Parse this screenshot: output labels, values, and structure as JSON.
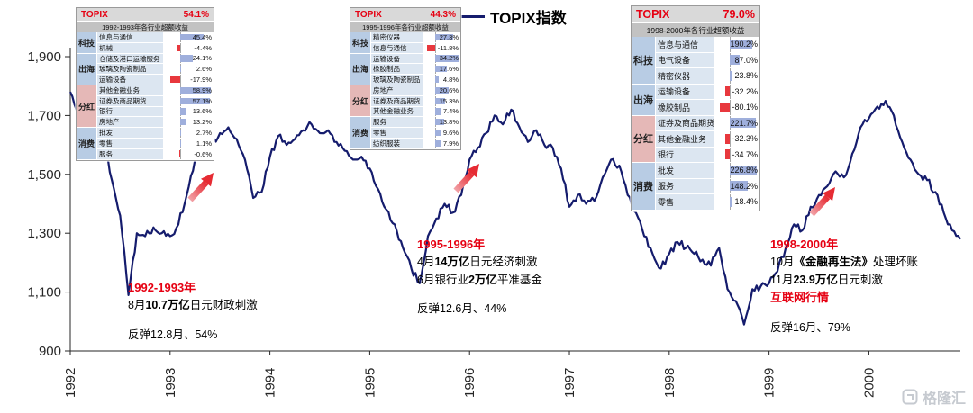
{
  "legend": {
    "label": "TOPIX指数"
  },
  "watermark": {
    "text": "格隆汇"
  },
  "colors": {
    "line": "#151c6d",
    "positive_bar": "#9fafdc",
    "negative_bar": "#e8383d",
    "accent_red": "#e60012"
  },
  "chart_data": {
    "type": "line",
    "series_name": "TOPIX指数",
    "x_start_year": 1992,
    "points_per_year": 12,
    "x_ticks_years": [
      1992,
      1993,
      1994,
      1995,
      1996,
      1997,
      1998,
      1999,
      2000
    ],
    "y_ticks": [
      900,
      1100,
      1300,
      1500,
      1700,
      1900
    ],
    "ylim": [
      900,
      1900
    ],
    "grid": false,
    "values": [
      1780,
      1700,
      1610,
      1560,
      1620,
      1480,
      1360,
      1090,
      1300,
      1290,
      1320,
      1300,
      1290,
      1330,
      1430,
      1550,
      1590,
      1600,
      1640,
      1660,
      1620,
      1550,
      1420,
      1440,
      1560,
      1630,
      1600,
      1620,
      1650,
      1670,
      1640,
      1650,
      1610,
      1580,
      1550,
      1560,
      1520,
      1450,
      1380,
      1330,
      1250,
      1180,
      1130,
      1290,
      1350,
      1400,
      1370,
      1430,
      1550,
      1590,
      1640,
      1700,
      1670,
      1720,
      1660,
      1610,
      1650,
      1600,
      1590,
      1520,
      1390,
      1430,
      1400,
      1410,
      1490,
      1550,
      1530,
      1430,
      1370,
      1290,
      1230,
      1180,
      1230,
      1270,
      1250,
      1230,
      1210,
      1190,
      1250,
      1110,
      1070,
      990,
      1110,
      1120,
      1130,
      1170,
      1250,
      1330,
      1310,
      1390,
      1430,
      1460,
      1510,
      1490,
      1570,
      1660,
      1690,
      1730,
      1750,
      1700,
      1610,
      1550,
      1500,
      1480,
      1440,
      1370,
      1310,
      1280
    ]
  },
  "tables": [
    {
      "index_label": "TOPIX",
      "index_value": "54.1%",
      "subtitle": "1992-1993年各行业超额收益",
      "groups": [
        {
          "name": "科技",
          "type": "blue",
          "rows": [
            {
              "label": "信息与通信",
              "value": 45.4
            },
            {
              "label": "机械",
              "value": -4.4
            }
          ]
        },
        {
          "name": "出海",
          "type": "blue",
          "rows": [
            {
              "label": "仓储及港口运输服务",
              "value": 24.1
            },
            {
              "label": "玻璃及陶瓷制品",
              "value": 2.6
            },
            {
              "label": "运输设备",
              "value": -17.9
            }
          ]
        },
        {
          "name": "分红",
          "type": "pink",
          "rows": [
            {
              "label": "其他金融业务",
              "value": 58.9
            },
            {
              "label": "证券及商品期货",
              "value": 57.1
            },
            {
              "label": "银行",
              "value": 13.6
            },
            {
              "label": "房地产",
              "value": 13.2
            }
          ]
        },
        {
          "name": "消费",
          "type": "blue",
          "rows": [
            {
              "label": "批发",
              "value": 2.7
            },
            {
              "label": "零售",
              "value": 1.1
            },
            {
              "label": "服务",
              "value": -0.6
            }
          ]
        }
      ]
    },
    {
      "index_label": "TOPIX",
      "index_value": "44.3%",
      "subtitle": "1995-1996年各行业超额收益",
      "groups": [
        {
          "name": "科技",
          "type": "blue",
          "rows": [
            {
              "label": "精密仪器",
              "value": 27.3
            },
            {
              "label": "信息与通信",
              "value": -11.8
            }
          ]
        },
        {
          "name": "出海",
          "type": "blue",
          "rows": [
            {
              "label": "运输设备",
              "value": 34.2
            },
            {
              "label": "橡胶制品",
              "value": 17.6
            },
            {
              "label": "玻璃及陶瓷制品",
              "value": 4.8
            }
          ]
        },
        {
          "name": "分红",
          "type": "pink",
          "rows": [
            {
              "label": "房地产",
              "value": 20.6
            },
            {
              "label": "证券及商品期货",
              "value": 15.3
            },
            {
              "label": "其他金融业务",
              "value": 7.4
            }
          ]
        },
        {
          "name": "消费",
          "type": "blue",
          "rows": [
            {
              "label": "服务",
              "value": 13.8
            },
            {
              "label": "零售",
              "value": 9.6
            },
            {
              "label": "纺织服装",
              "value": 7.9
            }
          ]
        }
      ]
    },
    {
      "index_label": "TOPIX",
      "index_value": "79.0%",
      "subtitle": "1998-2000年各行业超额收益",
      "groups": [
        {
          "name": "科技",
          "type": "blue",
          "rows": [
            {
              "label": "信息与通信",
              "value": 190.2
            },
            {
              "label": "电气设备",
              "value": 87.0
            },
            {
              "label": "精密仪器",
              "value": 23.8
            }
          ]
        },
        {
          "name": "出海",
          "type": "blue",
          "rows": [
            {
              "label": "运输设备",
              "value": -32.2
            },
            {
              "label": "橡胶制品",
              "value": -80.1
            }
          ]
        },
        {
          "name": "分红",
          "type": "pink",
          "rows": [
            {
              "label": "证券及商品期货",
              "value": 221.7
            },
            {
              "label": "其他金融业务",
              "value": -32.3
            },
            {
              "label": "银行",
              "value": -34.7
            }
          ]
        },
        {
          "name": "消费",
          "type": "blue",
          "rows": [
            {
              "label": "批发",
              "value": 226.8
            },
            {
              "label": "服务",
              "value": 148.2
            },
            {
              "label": "零售",
              "value": 18.4
            }
          ]
        }
      ]
    }
  ],
  "annotations": [
    {
      "lines": [
        {
          "segs": [
            {
              "t": "1992-1993年",
              "red": true,
              "bold": true
            }
          ]
        },
        {
          "segs": [
            {
              "t": "8月"
            },
            {
              "t": "10.7万亿",
              "bold": true
            },
            {
              "t": "日元财政刺激"
            }
          ]
        },
        {
          "segs": [
            {
              "t": "反弹12.8月、54%"
            }
          ],
          "gap": true
        }
      ]
    },
    {
      "lines": [
        {
          "segs": [
            {
              "t": "1995-1996年",
              "red": true,
              "bold": true
            }
          ]
        },
        {
          "segs": [
            {
              "t": "4月"
            },
            {
              "t": "14万亿",
              "bold": true
            },
            {
              "t": "日元经济刺激"
            }
          ]
        },
        {
          "segs": [
            {
              "t": "6月银行业"
            },
            {
              "t": "2万亿",
              "bold": true
            },
            {
              "t": "平准基金"
            }
          ]
        },
        {
          "segs": [
            {
              "t": "反弹12.6月、44%"
            }
          ],
          "gap": true
        }
      ]
    },
    {
      "lines": [
        {
          "segs": [
            {
              "t": "1998-2000年",
              "red": true,
              "bold": true
            }
          ]
        },
        {
          "segs": [
            {
              "t": "10月"
            },
            {
              "t": "《金融再生法》",
              "bold": true
            },
            {
              "t": "处理坏账"
            }
          ]
        },
        {
          "segs": [
            {
              "t": "11月"
            },
            {
              "t": "23.9万亿",
              "bold": true
            },
            {
              "t": "日元刺激"
            }
          ]
        },
        {
          "segs": [
            {
              "t": "互联网行情",
              "red": true,
              "bold": true
            }
          ]
        },
        {
          "segs": [
            {
              "t": "反弹16月、79%"
            }
          ],
          "gap": true
        }
      ]
    }
  ]
}
